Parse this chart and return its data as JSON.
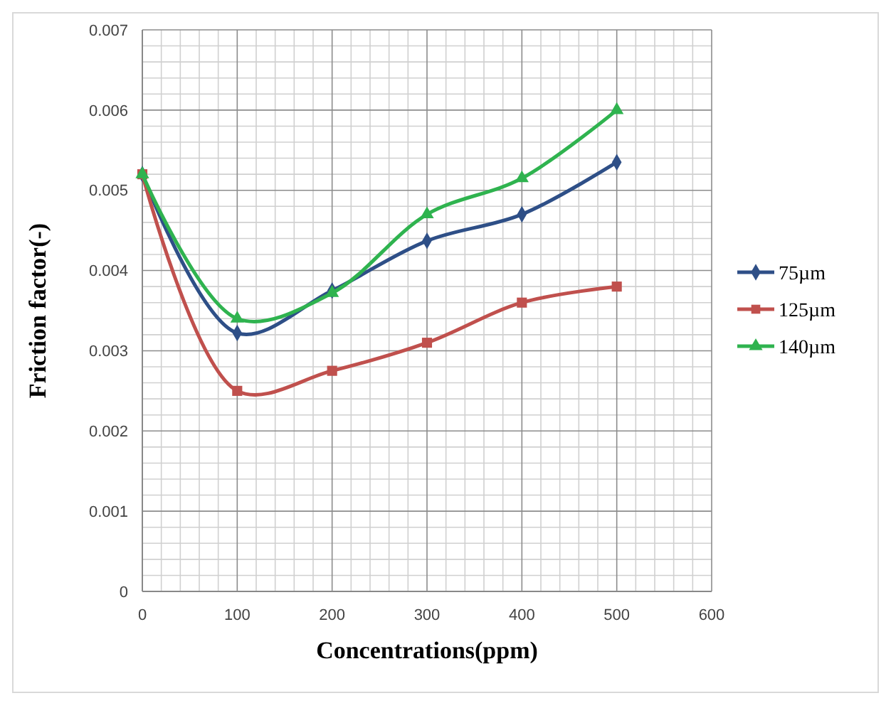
{
  "chart_data": {
    "type": "line",
    "xlabel": "Concentrations(ppm)",
    "ylabel": "Friction factor(-)",
    "x": [
      0,
      100,
      200,
      300,
      400,
      500
    ],
    "xlim": [
      0,
      600
    ],
    "xticks": [
      0,
      100,
      200,
      300,
      400,
      500,
      600
    ],
    "ylim": [
      0,
      0.007
    ],
    "yticks": [
      0,
      0.001,
      0.002,
      0.003,
      0.004,
      0.005,
      0.006,
      0.007
    ],
    "grid": true,
    "legend": "right",
    "series": [
      {
        "name": "75µm",
        "color": "#2e4f87",
        "marker": "diamond",
        "values": [
          0.0052,
          0.00322,
          0.00375,
          0.00437,
          0.0047,
          0.00535
        ]
      },
      {
        "name": "125µm",
        "color": "#c0504d",
        "marker": "square",
        "values": [
          0.0052,
          0.0025,
          0.00275,
          0.0031,
          0.0036,
          0.0038
        ]
      },
      {
        "name": "140µm",
        "color": "#2fb34f",
        "marker": "triangle",
        "values": [
          0.0052,
          0.0034,
          0.00372,
          0.0047,
          0.00515,
          0.006
        ]
      }
    ]
  }
}
